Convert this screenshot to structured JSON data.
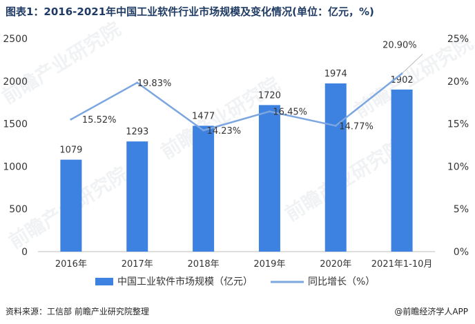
{
  "title": "图表1：2016-2021年中国工业软件行业市场规模及变化情况(单位：亿元，%)",
  "source": "资料来源：工信部 前瞻产业研究院整理",
  "brand": "@前瞻经济学人APP",
  "watermark": "前瞻产业研究院",
  "colors": {
    "bar": "#3d82e0",
    "line": "#7ba6e0",
    "axis": "#bbbbbb",
    "text": "#333333"
  },
  "chart_data": {
    "type": "bar",
    "categories": [
      "2016年",
      "2017年",
      "2018年",
      "2019年",
      "2020年",
      "2021年1-10月"
    ],
    "series": [
      {
        "name": "中国工业软件市场规模（亿元）",
        "kind": "bar",
        "axis": "left",
        "values": [
          1079,
          1293,
          1477,
          1720,
          1974,
          1902
        ],
        "labels": [
          "1079",
          "1293",
          "1477",
          "1720",
          "1974",
          "1902"
        ]
      },
      {
        "name": "同比增长（%）",
        "kind": "line",
        "axis": "right",
        "values": [
          15.52,
          19.83,
          14.23,
          16.45,
          14.77,
          20.9
        ],
        "labels": [
          "15.52%",
          "19.83%",
          "14.23%",
          "16.45%",
          "14.77%",
          "20.90%"
        ]
      }
    ],
    "left_axis": {
      "min": 0,
      "max": 2500,
      "ticks": [
        "0",
        "500",
        "1000",
        "1500",
        "2000",
        "2500"
      ]
    },
    "right_axis": {
      "min": 0,
      "max": 25,
      "ticks": [
        "0%",
        "5%",
        "10%",
        "15%",
        "20%",
        "25%"
      ]
    },
    "legend_position": "bottom"
  }
}
